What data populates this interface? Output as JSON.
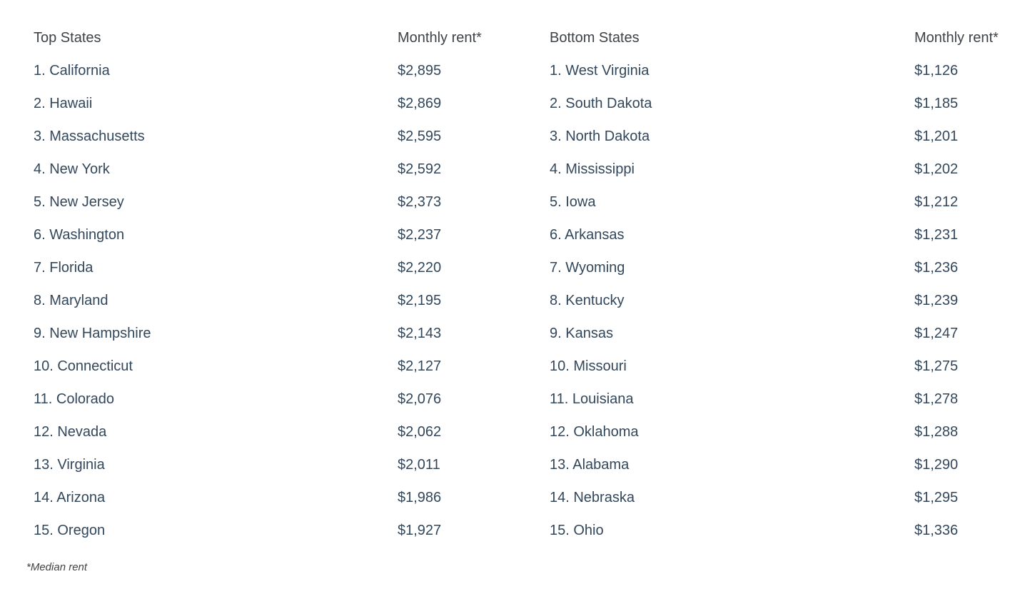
{
  "chart_data": {
    "type": "table",
    "footnote": "*Median rent",
    "tables": [
      {
        "id": "top",
        "header_state": "Top States",
        "header_rent": "Monthly rent*",
        "rows": [
          {
            "label": "1. California",
            "rent": "$2,895"
          },
          {
            "label": "2. Hawaii",
            "rent": "$2,869"
          },
          {
            "label": "3. Massachusetts",
            "rent": "$2,595"
          },
          {
            "label": "4. New York",
            "rent": "$2,592"
          },
          {
            "label": "5. New Jersey",
            "rent": "$2,373"
          },
          {
            "label": "6. Washington",
            "rent": "$2,237"
          },
          {
            "label": "7. Florida",
            "rent": "$2,220"
          },
          {
            "label": "8. Maryland",
            "rent": "$2,195"
          },
          {
            "label": "9. New Hampshire",
            "rent": "$2,143"
          },
          {
            "label": "10. Connecticut",
            "rent": "$2,127"
          },
          {
            "label": "11. Colorado",
            "rent": "$2,076"
          },
          {
            "label": "12. Nevada",
            "rent": "$2,062"
          },
          {
            "label": "13. Virginia",
            "rent": "$2,011"
          },
          {
            "label": "14. Arizona",
            "rent": "$1,986"
          },
          {
            "label": "15. Oregon",
            "rent": "$1,927"
          }
        ]
      },
      {
        "id": "bottom",
        "header_state": "Bottom States",
        "header_rent": "Monthly rent*",
        "rows": [
          {
            "label": "1. West Virginia",
            "rent": "$1,126"
          },
          {
            "label": "2. South Dakota",
            "rent": "$1,185"
          },
          {
            "label": "3. North Dakota",
            "rent": "$1,201"
          },
          {
            "label": "4. Mississippi",
            "rent": "$1,202"
          },
          {
            "label": "5. Iowa",
            "rent": "$1,212"
          },
          {
            "label": "6. Arkansas",
            "rent": "$1,231"
          },
          {
            "label": "7. Wyoming",
            "rent": "$1,236"
          },
          {
            "label": "8. Kentucky",
            "rent": "$1,239"
          },
          {
            "label": "9. Kansas",
            "rent": "$1,247"
          },
          {
            "label": "10. Missouri",
            "rent": "$1,275"
          },
          {
            "label": "11. Louisiana",
            "rent": "$1,278"
          },
          {
            "label": "12. Oklahoma",
            "rent": "$1,288"
          },
          {
            "label": "13. Alabama",
            "rent": "$1,290"
          },
          {
            "label": "14. Nebraska",
            "rent": "$1,295"
          },
          {
            "label": "15. Ohio",
            "rent": "$1,336"
          }
        ]
      }
    ]
  },
  "colors": {
    "background": "#ffffff",
    "row_text": "#33475b",
    "header_text": "#3e4347",
    "footnote_text": "#424242"
  }
}
